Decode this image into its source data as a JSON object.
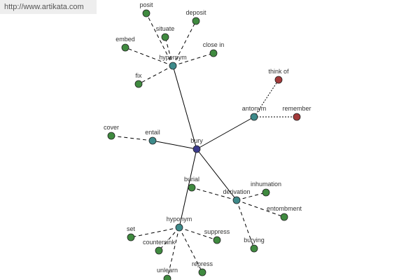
{
  "header": {
    "link": "http://www.artikata.com"
  },
  "nodes": [
    {
      "label": "bury"
    },
    {
      "label": "hypernym"
    },
    {
      "label": "antonym"
    },
    {
      "label": "entail"
    },
    {
      "label": "derivation"
    },
    {
      "label": "hyponym"
    },
    {
      "label": "posit"
    },
    {
      "label": "deposit"
    },
    {
      "label": "situate"
    },
    {
      "label": "embed"
    },
    {
      "label": "close in"
    },
    {
      "label": "fix"
    },
    {
      "label": "think of"
    },
    {
      "label": "remember"
    },
    {
      "label": "cover"
    },
    {
      "label": "burial"
    },
    {
      "label": "inhumation"
    },
    {
      "label": "entombment"
    },
    {
      "label": "burying"
    },
    {
      "label": "set"
    },
    {
      "label": "countersink"
    },
    {
      "label": "suppress"
    },
    {
      "label": "unlearn"
    },
    {
      "label": "repress"
    }
  ]
}
